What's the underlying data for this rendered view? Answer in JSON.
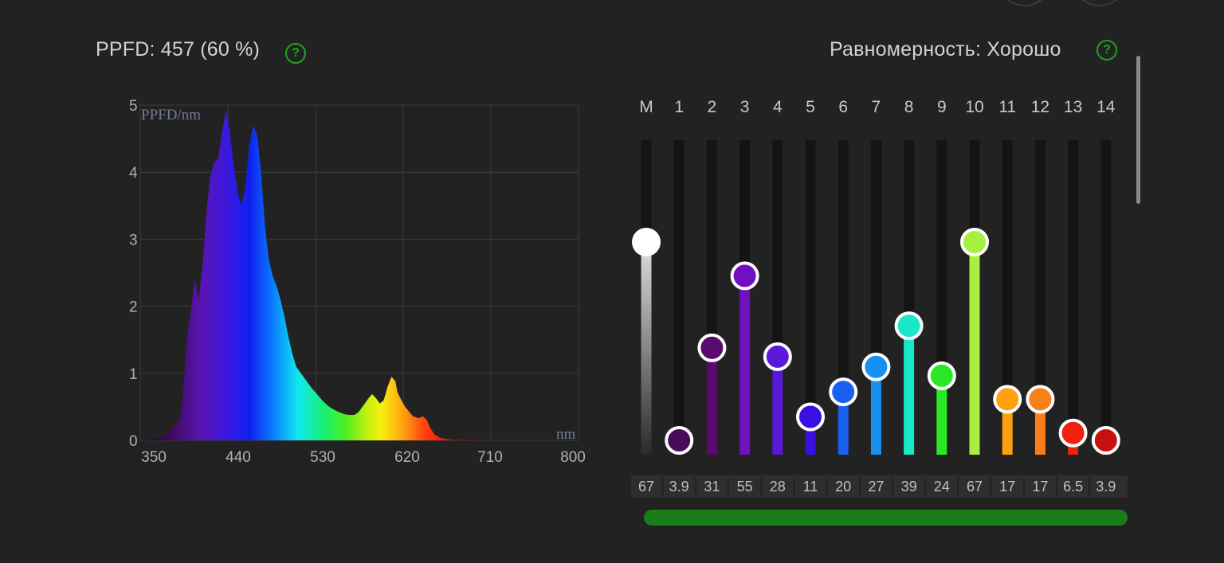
{
  "header": {
    "ppfd_text": "PPFD: 457 (60 %)",
    "uniformity_text": "Равномерность: Хорошо",
    "help_label": "?"
  },
  "spectrum_chart": {
    "y_axis_label": "PPFD/nm",
    "x_axis_label": "nm",
    "y_ticks": [
      "0",
      "1",
      "2",
      "3",
      "4",
      "5"
    ],
    "x_ticks": [
      "350",
      "440",
      "530",
      "620",
      "710",
      "800"
    ]
  },
  "chart_data": {
    "type": "area",
    "xlabel": "nm",
    "ylabel": "PPFD/nm",
    "xlim": [
      350,
      800
    ],
    "ylim": [
      0,
      5
    ],
    "grid": true,
    "series": [
      {
        "x": [
          350,
          360,
          366,
          370,
          375,
          380,
          384,
          387,
          390,
          392,
          394,
          396,
          398,
          402,
          406,
          410,
          414,
          418,
          422,
          426,
          430,
          434,
          438,
          442,
          446,
          450,
          454,
          458,
          462,
          466,
          470,
          474,
          478,
          482,
          486,
          490,
          494,
          498,
          502,
          506,
          510,
          516,
          520,
          526,
          532,
          538,
          544,
          550,
          556,
          560,
          564,
          566,
          570,
          574,
          578,
          584,
          588,
          592,
          596,
          600,
          604,
          608,
          612,
          614,
          618,
          622,
          626,
          630,
          636,
          640,
          644,
          648,
          652,
          658,
          664,
          672,
          690,
          720,
          760,
          800
        ],
        "y": [
          0,
          0.01,
          0.03,
          0.06,
          0.09,
          0.14,
          0.2,
          0.26,
          0.32,
          0.45,
          0.7,
          1.1,
          1.55,
          1.95,
          2.4,
          2.1,
          2.6,
          3.4,
          3.95,
          4.15,
          4.2,
          4.6,
          4.92,
          4.6,
          4.1,
          3.7,
          3.5,
          3.8,
          4.4,
          4.7,
          4.55,
          4.0,
          3.2,
          2.7,
          2.45,
          2.3,
          2.1,
          1.85,
          1.55,
          1.3,
          1.1,
          0.98,
          0.9,
          0.78,
          0.68,
          0.58,
          0.5,
          0.45,
          0.41,
          0.39,
          0.38,
          0.38,
          0.38,
          0.42,
          0.5,
          0.62,
          0.69,
          0.63,
          0.55,
          0.6,
          0.8,
          0.95,
          0.88,
          0.72,
          0.6,
          0.5,
          0.43,
          0.36,
          0.33,
          0.36,
          0.31,
          0.18,
          0.09,
          0.04,
          0.02,
          0.01,
          0.005,
          0.002,
          0.001,
          0
        ]
      }
    ]
  },
  "channels": [
    {
      "label": "M",
      "value": "67",
      "level": 0.675,
      "color": "#ffffff"
    },
    {
      "label": "1",
      "value": "3.9",
      "level": 0.0,
      "color": "#4a0a5c"
    },
    {
      "label": "2",
      "value": "31",
      "level": 0.315,
      "color": "#5a0a6e"
    },
    {
      "label": "3",
      "value": "55",
      "level": 0.56,
      "color": "#7010c0"
    },
    {
      "label": "4",
      "value": "28",
      "level": 0.285,
      "color": "#5a18d8"
    },
    {
      "label": "5",
      "value": "11",
      "level": 0.08,
      "color": "#3a10e0"
    },
    {
      "label": "6",
      "value": "20",
      "level": 0.165,
      "color": "#1a60f0"
    },
    {
      "label": "7",
      "value": "27",
      "level": 0.25,
      "color": "#1890f0"
    },
    {
      "label": "8",
      "value": "39",
      "level": 0.39,
      "color": "#18e8c8"
    },
    {
      "label": "9",
      "value": "24",
      "level": 0.22,
      "color": "#28e828"
    },
    {
      "label": "10",
      "value": "67",
      "level": 0.675,
      "color": "#a8f040"
    },
    {
      "label": "11",
      "value": "17",
      "level": 0.14,
      "color": "#ffa010"
    },
    {
      "label": "12",
      "value": "17",
      "level": 0.14,
      "color": "#f88018"
    },
    {
      "label": "13",
      "value": "6.5",
      "level": 0.025,
      "color": "#f02010"
    },
    {
      "label": "14",
      "value": "3.9",
      "level": 0.0,
      "color": "#c81010"
    }
  ],
  "colors": {
    "accent_green": "#1fa31f",
    "background": "#222222",
    "uniformity_bar": "#1b7c1b"
  }
}
